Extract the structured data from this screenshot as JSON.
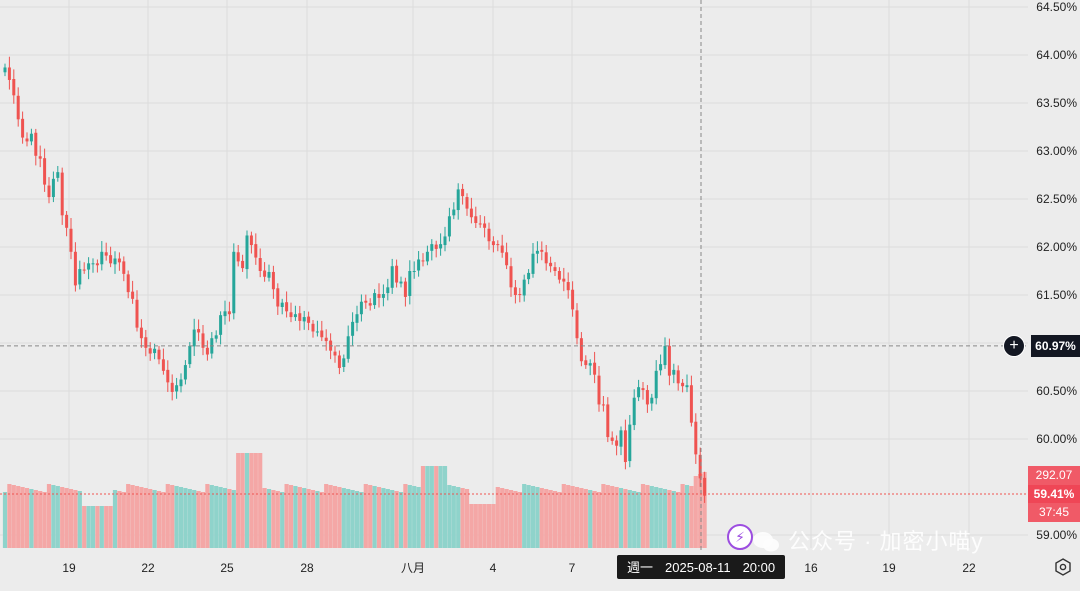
{
  "chart_data": {
    "type": "candlestick",
    "y_axis": {
      "position": "right",
      "ticks": [
        "64.50%",
        "64.00%",
        "63.50%",
        "63.00%",
        "62.50%",
        "62.00%",
        "61.50%",
        "61.00%",
        "60.50%",
        "60.00%",
        "59.00%"
      ],
      "tick_values": [
        64.5,
        64.0,
        63.5,
        63.0,
        62.5,
        62.0,
        61.5,
        61.0,
        60.5,
        60.0,
        59.0
      ],
      "range": [
        58.97,
        64.55
      ]
    },
    "x_axis": {
      "ticks": [
        "19",
        "22",
        "25",
        "28",
        "八月",
        "4",
        "7",
        "16",
        "19",
        "22"
      ]
    },
    "crosshair": {
      "date_label": "週一",
      "date": "2025-08-11",
      "time": "20:00",
      "price": "60.97%"
    },
    "last": {
      "volume": "292.07",
      "price": "59.41%",
      "countdown": "37:45"
    },
    "colors": {
      "up": "#26a69a",
      "down": "#ef5350",
      "vol_up": "#8fd3cb",
      "vol_down": "#f4a7a6",
      "grid": "#dcdcdc"
    },
    "grid": true,
    "close": [
      63.87,
      63.74,
      63.58,
      63.33,
      63.14,
      63.1,
      63.18,
      62.95,
      62.92,
      62.65,
      62.52,
      62.71,
      62.78,
      62.33,
      62.2,
      61.95,
      61.6,
      61.77,
      61.76,
      61.83,
      61.83,
      61.81,
      61.95,
      61.91,
      61.83,
      61.88,
      61.84,
      61.72,
      61.53,
      61.46,
      61.16,
      61.05,
      60.95,
      60.89,
      60.94,
      60.83,
      60.71,
      60.59,
      60.49,
      60.56,
      60.62,
      60.77,
      60.97,
      61.14,
      61.11,
      60.95,
      60.88,
      61.05,
      61.08,
      61.29,
      61.33,
      61.3,
      61.95,
      61.85,
      61.78,
      62.12,
      62.02,
      61.89,
      61.75,
      61.69,
      61.74,
      61.56,
      61.38,
      61.42,
      61.33,
      61.27,
      61.3,
      61.23,
      61.27,
      61.21,
      61.12,
      61.12,
      61.06,
      61.02,
      60.92,
      60.87,
      60.74,
      60.84,
      61.07,
      61.22,
      61.3,
      61.43,
      61.42,
      61.39,
      61.52,
      61.47,
      61.51,
      61.58,
      61.8,
      61.63,
      61.64,
      61.48,
      61.75,
      61.75,
      61.87,
      61.85,
      61.95,
      62.03,
      61.98,
      62.03,
      62.11,
      62.32,
      62.39,
      62.6,
      62.53,
      62.4,
      62.31,
      62.25,
      62.24,
      62.2,
      62.06,
      62.02,
      62.02,
      61.94,
      61.81,
      61.58,
      61.5,
      61.5,
      61.66,
      61.73,
      61.93,
      61.96,
      61.95,
      61.83,
      61.8,
      61.75,
      61.66,
      61.64,
      61.55,
      61.35,
      61.05,
      60.81,
      60.77,
      60.79,
      60.67,
      60.36,
      60.35,
      60.02,
      59.98,
      59.93,
      60.09,
      59.76,
      60.15,
      60.43,
      60.54,
      60.51,
      60.36,
      60.43,
      60.71,
      60.78,
      60.97,
      60.66,
      60.72,
      60.58,
      60.55,
      60.56,
      60.17,
      59.84,
      59.59,
      59.41
    ]
  }
}
